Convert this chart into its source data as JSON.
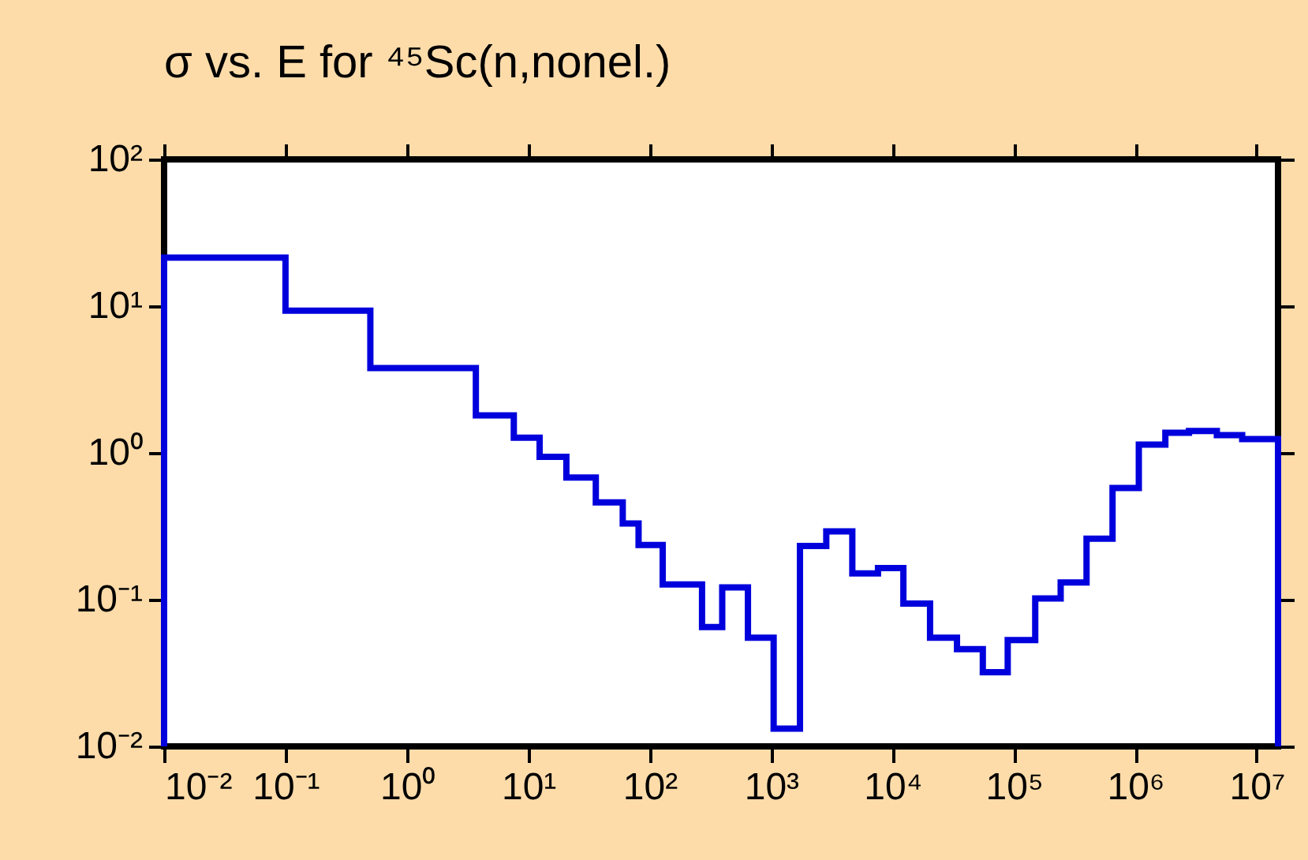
{
  "chart_data": {
    "type": "histogram",
    "title": "σ vs. E for ⁴⁵Sc(n,nonel.)",
    "bins": [
      0.01,
      0.1,
      0.5,
      3.7,
      7.6,
      12.4,
      20.6,
      36,
      60,
      81,
      128,
      270,
      396,
      645,
      1050,
      1730,
      2850,
      4670,
      7600,
      12300,
      20400,
      34000,
      55500,
      89000,
      150000,
      243000,
      397000,
      650000,
      1070000,
      1770000,
      2770000,
      4700000,
      7600000,
      15000000
    ],
    "values": [
      21.4,
      9.3,
      3.78,
      1.8,
      1.27,
      0.94,
      0.68,
      0.46,
      0.33,
      0.236,
      0.127,
      0.065,
      0.121,
      0.055,
      0.0132,
      0.232,
      0.292,
      0.151,
      0.164,
      0.094,
      0.055,
      0.046,
      0.032,
      0.053,
      0.102,
      0.131,
      0.26,
      0.576,
      1.14,
      1.37,
      1.41,
      1.32,
      1.24
    ],
    "color": "#0000dd",
    "log": "xy",
    "grid": false,
    "xlim": [
      0.01,
      15000000
    ],
    "xticks": [
      {
        "value": 0.01,
        "label": "10⁻²"
      },
      {
        "value": 0.1,
        "label": "10⁻¹"
      },
      {
        "value": 1,
        "label": "10⁰"
      },
      {
        "value": 10,
        "label": "10¹"
      },
      {
        "value": 100,
        "label": "10²"
      },
      {
        "value": 1000,
        "label": "10³"
      },
      {
        "value": 10000,
        "label": "10⁴"
      },
      {
        "value": 100000,
        "label": "10⁵"
      },
      {
        "value": 1000000,
        "label": "10⁶"
      },
      {
        "value": 10000000,
        "label": "10⁷"
      }
    ],
    "ylim": [
      0.01,
      100
    ],
    "yticks": [
      {
        "value": 0.01,
        "label": "10⁻²"
      },
      {
        "value": 0.1,
        "label": "10⁻¹"
      },
      {
        "value": 1,
        "label": "10⁰"
      },
      {
        "value": 10,
        "label": "10¹"
      },
      {
        "value": 100,
        "label": "10²"
      }
    ]
  }
}
